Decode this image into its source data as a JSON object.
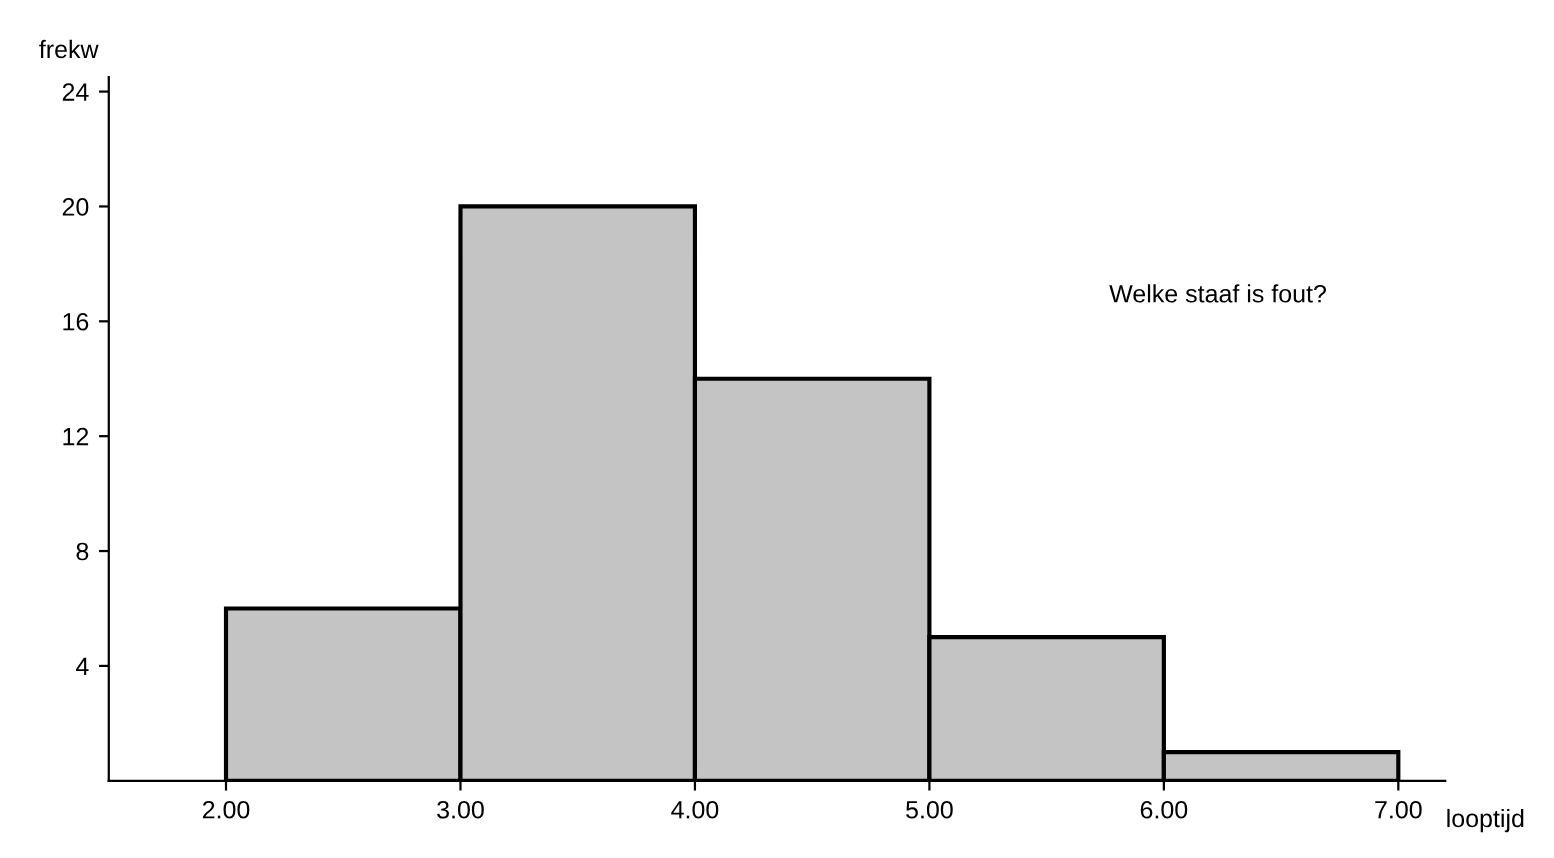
{
  "chart_data": {
    "type": "histogram",
    "xlabel": "looptijd",
    "ylabel": "frekw",
    "bins": [
      2,
      3,
      4,
      5,
      6,
      7
    ],
    "values": [
      6,
      20,
      14,
      5,
      1
    ],
    "color": "#c4c4c4",
    "xlim": [
      1.5,
      7.2
    ],
    "ylim": [
      0,
      24.5
    ],
    "xticks": [
      {
        "value": 2,
        "label": "2.00"
      },
      {
        "value": 3,
        "label": "3.00"
      },
      {
        "value": 4,
        "label": "4.00"
      },
      {
        "value": 5,
        "label": "5.00"
      },
      {
        "value": 6,
        "label": "6.00"
      },
      {
        "value": 7,
        "label": "7.00"
      }
    ],
    "yticks": [
      4,
      8,
      12,
      16,
      20,
      24
    ],
    "annotations": [
      "Welke staaf is fout?"
    ],
    "grid": false,
    "legend": false
  }
}
